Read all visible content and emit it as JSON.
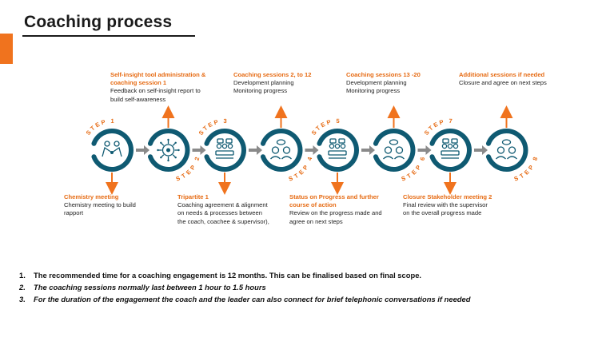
{
  "title": "Coaching process",
  "colors": {
    "accent": "#f0731e",
    "ring": "#0f5a72",
    "icon": "#0f5a72",
    "arrow_gray": "#8a8a8a",
    "step_text": "#e66a12"
  },
  "steps": [
    {
      "label": "STEP 1",
      "icon": "handshake-icon",
      "title": "Chemistry meeting",
      "lines": [
        "Chemistry meeting to build",
        "rapport"
      ]
    },
    {
      "label": "STEP 2",
      "icon": "brain-gear-icon",
      "title": "Self-insight tool administration &",
      "title2": "coaching session 1",
      "lines": [
        "Feedback on self-insight report to",
        "build self-awareness"
      ]
    },
    {
      "label": "STEP 3",
      "icon": "meeting-group-icon",
      "title": "Tripartite 1",
      "lines": [
        "Coaching agreement & alignment",
        "on needs & processes between",
        "the coach, coachee & supervisor),"
      ]
    },
    {
      "label": "STEP 4",
      "icon": "conversation-icon",
      "title": "Coaching sessions 2, to 12",
      "lines": [
        "Development planning",
        "Monitoring progress"
      ]
    },
    {
      "label": "STEP 5",
      "icon": "meeting-group-icon",
      "title": "Status on Progress and further",
      "title2": "course of action",
      "lines": [
        "Review on the progress made and",
        "agree on next steps"
      ]
    },
    {
      "label": "STEP 6",
      "icon": "conversation-icon",
      "title": "Coaching sessions 13 -20",
      "lines": [
        "Development planning",
        "Monitoring progress"
      ]
    },
    {
      "label": "STEP 7",
      "icon": "meeting-group-icon",
      "title": "Closure Stakeholder meeting 2",
      "lines": [
        "Final review with the supervisor",
        "on the overall progress made"
      ]
    },
    {
      "label": "STEP 8",
      "icon": "conversation-icon",
      "title": "Additional sessions if needed",
      "lines": [
        "Closure and agree on next steps"
      ]
    }
  ],
  "notes": [
    {
      "num": "1.",
      "text": "The recommended time for a coaching engagement is 12 months. This can be finalised based on final scope."
    },
    {
      "num": "2.",
      "text": "The coaching sessions normally last between 1 hour to 1.5 hours"
    },
    {
      "num": "3.",
      "text": "For the duration of the engagement the coach and the leader can also connect for brief telephonic conversations if needed"
    }
  ]
}
